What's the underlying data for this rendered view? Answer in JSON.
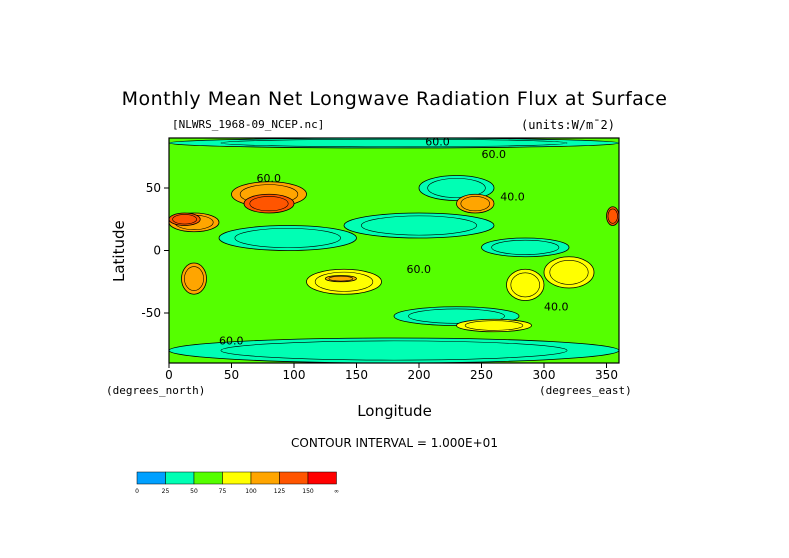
{
  "chart_data": {
    "type": "heatmap",
    "title": "Monthly Mean Net Longwave Radiation Flux at Surface",
    "subtitle_left": "[NLWRS_1968-09_NCEP.nc]",
    "subtitle_right": "(units:W/m¯2)",
    "xlabel": "Longitude",
    "ylabel": "Latitude",
    "x_unit_label": "(degrees_east)",
    "y_unit_label": "(degrees_north)",
    "xlim": [
      0,
      360
    ],
    "ylim": [
      -90,
      90
    ],
    "x_ticks": [
      "0",
      "50",
      "100",
      "150",
      "200",
      "250",
      "300",
      "350"
    ],
    "y_ticks": [
      "50",
      "0",
      "-50"
    ],
    "contour_interval_text": "CONTOUR INTERVAL = 1.000E+01",
    "contour_labels": [
      "40.0",
      "60.0",
      "60.0",
      "60.0",
      "60.0",
      "40.0",
      "60.0"
    ],
    "colorbar": {
      "levels": [
        "0",
        "25",
        "50",
        "75",
        "100",
        "125",
        "150",
        "∞"
      ],
      "colors": [
        "#00a0ff",
        "#00ffb4",
        "#55ff00",
        "#ffff00",
        "#ffa500",
        "#ff5500",
        "#ff0000"
      ]
    },
    "background_level_color": "#55ff00",
    "regions": [
      {
        "lon": [
          0,
          360
        ],
        "lat": [
          82,
          90
        ],
        "bin": 1
      },
      {
        "lon": [
          0,
          360
        ],
        "lat": [
          -90,
          -70
        ],
        "bin": 1
      },
      {
        "lon": [
          140,
          260
        ],
        "lat": [
          10,
          30
        ],
        "bin": 1
      },
      {
        "lon": [
          40,
          150
        ],
        "lat": [
          0,
          20
        ],
        "bin": 1
      },
      {
        "lon": [
          250,
          320
        ],
        "lat": [
          -5,
          10
        ],
        "bin": 1
      },
      {
        "lon": [
          180,
          280
        ],
        "lat": [
          -60,
          -45
        ],
        "bin": 1
      },
      {
        "lon": [
          200,
          260
        ],
        "lat": [
          40,
          60
        ],
        "bin": 1
      },
      {
        "lon": [
          0,
          40
        ],
        "lat": [
          15,
          30
        ],
        "bin": 4
      },
      {
        "lon": [
          50,
          110
        ],
        "lat": [
          35,
          55
        ],
        "bin": 4
      },
      {
        "lon": [
          10,
          30
        ],
        "lat": [
          -35,
          -10
        ],
        "bin": 4
      },
      {
        "lon": [
          110,
          170
        ],
        "lat": [
          -35,
          -15
        ],
        "bin": 3
      },
      {
        "lon": [
          230,
          260
        ],
        "lat": [
          30,
          45
        ],
        "bin": 4
      },
      {
        "lon": [
          270,
          300
        ],
        "lat": [
          -40,
          -15
        ],
        "bin": 3
      },
      {
        "lon": [
          300,
          340
        ],
        "lat": [
          -30,
          -5
        ],
        "bin": 3
      },
      {
        "lon": [
          230,
          290
        ],
        "lat": [
          -65,
          -55
        ],
        "bin": 3
      },
      {
        "lon": [
          0,
          25
        ],
        "lat": [
          20,
          30
        ],
        "bin": 5
      },
      {
        "lon": [
          60,
          100
        ],
        "lat": [
          30,
          45
        ],
        "bin": 5
      },
      {
        "lon": [
          350,
          360
        ],
        "lat": [
          20,
          35
        ],
        "bin": 5
      },
      {
        "lon": [
          125,
          150
        ],
        "lat": [
          -25,
          -20
        ],
        "bin": 4
      }
    ]
  }
}
